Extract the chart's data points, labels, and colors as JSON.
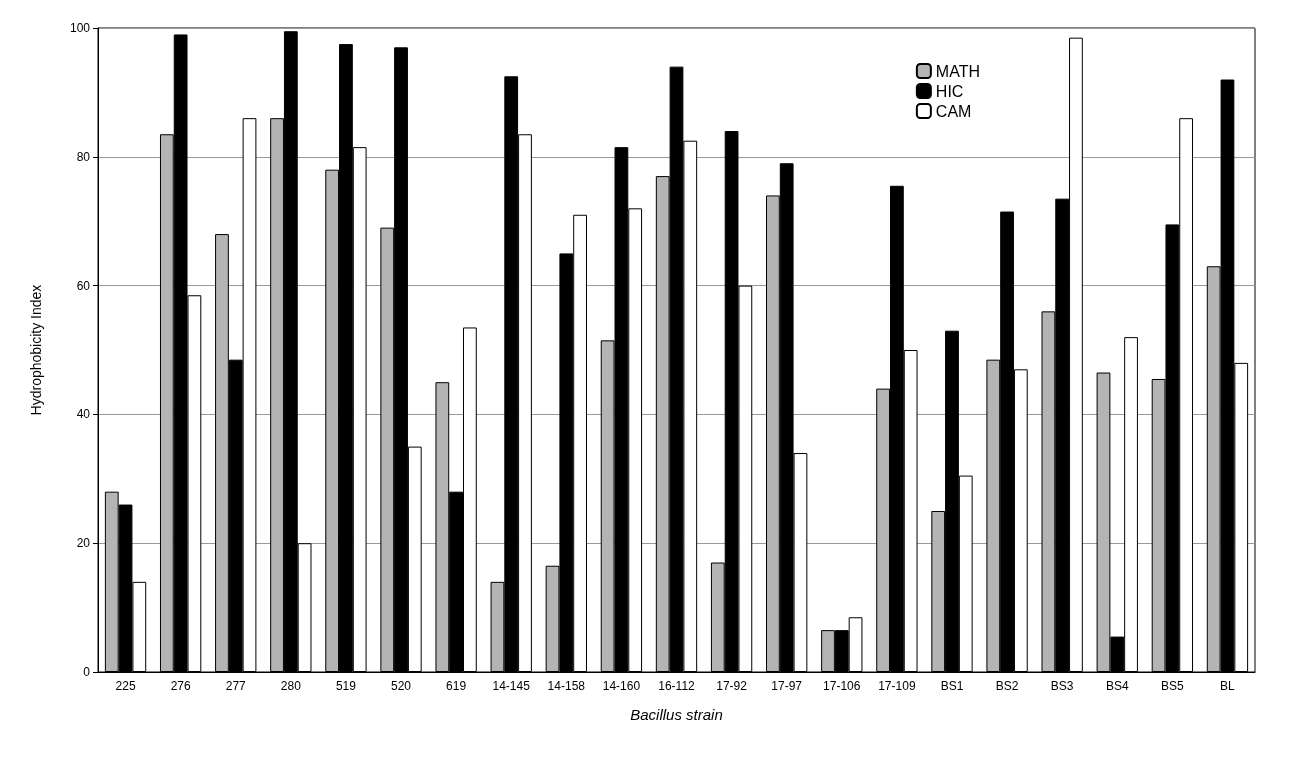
{
  "chart_data": {
    "type": "bar",
    "xlabel": "Bacillus strain",
    "ylabel": "Hydrophobicity Index",
    "categories": [
      "225",
      "276",
      "277",
      "280",
      "519",
      "520",
      "619",
      "14-145",
      "14-158",
      "14-160",
      "16-112",
      "17-92",
      "17-97",
      "17-106",
      "17-109",
      "BS1",
      "BS2",
      "BS3",
      "BS4",
      "BS5",
      "BL"
    ],
    "series": [
      {
        "name": "MATH",
        "color": "#b4b4b4",
        "values": [
          28,
          83.5,
          68,
          86,
          78,
          69,
          45,
          14,
          16.5,
          51.5,
          77,
          17,
          74,
          6.5,
          44,
          25,
          48.5,
          56,
          46.5,
          45.5,
          63
        ]
      },
      {
        "name": "HIC",
        "color": "#000000",
        "values": [
          26,
          99,
          48.5,
          99.5,
          97.5,
          97,
          28,
          92.5,
          65,
          81.5,
          94,
          84,
          79,
          6.5,
          75.5,
          53,
          71.5,
          73.5,
          5.5,
          69.5,
          92
        ]
      },
      {
        "name": "CAM",
        "color": "#ffffff",
        "values": [
          14,
          58.5,
          86,
          20,
          81.5,
          35,
          53.5,
          83.5,
          71,
          72,
          82.5,
          60,
          34,
          8.5,
          50,
          30.5,
          47,
          98.5,
          52,
          86,
          48
        ]
      }
    ],
    "ylim": [
      0,
      100
    ],
    "yticks": [
      0,
      20,
      40,
      60,
      80,
      100
    ],
    "grid": "y",
    "legend": "top right"
  }
}
